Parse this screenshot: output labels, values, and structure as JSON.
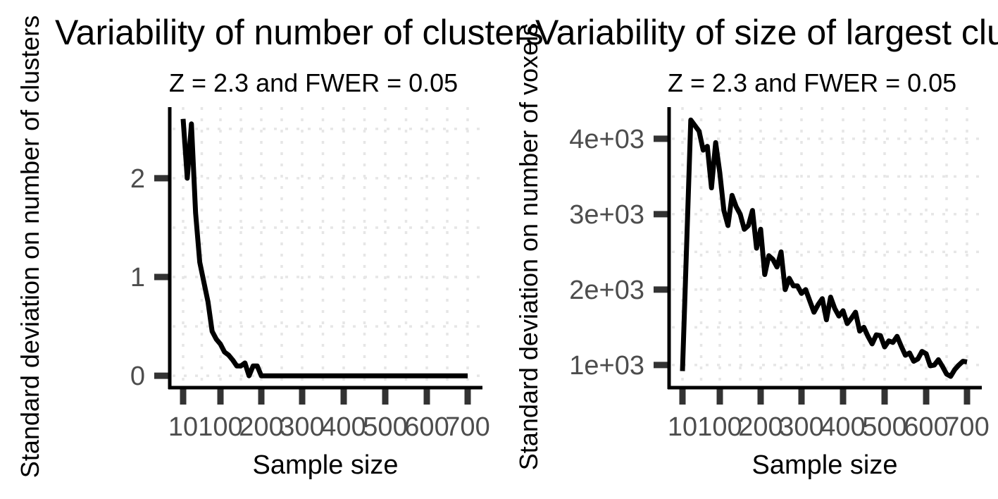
{
  "chart_data": [
    {
      "type": "line",
      "title": "Variability of number of clusters",
      "subtitle": "Z = 2.3 and FWER = 0.05",
      "xlabel": "Sample size",
      "ylabel": "Standard deviation on number of clusters",
      "x_ticks": [
        10,
        100,
        200,
        300,
        400,
        500,
        600,
        700
      ],
      "y_ticks": [
        0,
        1,
        2
      ],
      "y_tick_labels": [
        "0",
        "1",
        "2"
      ],
      "ylim": [
        -0.12,
        2.72
      ],
      "grid": "dotted",
      "series": [
        {
          "x": [
            10,
            20,
            30,
            40,
            50,
            60,
            70,
            80,
            90,
            100,
            110,
            120,
            130,
            140,
            150,
            160,
            170,
            180,
            190,
            200,
            210,
            220,
            700
          ],
          "y": [
            2.6,
            2.0,
            2.55,
            1.65,
            1.15,
            0.95,
            0.75,
            0.45,
            0.37,
            0.32,
            0.24,
            0.21,
            0.16,
            0.1,
            0.1,
            0.13,
            0.0,
            0.1,
            0.1,
            0.0,
            0.0,
            0.0,
            0.0
          ]
        }
      ]
    },
    {
      "type": "line",
      "title": "Variability of size of largest cluster",
      "subtitle": "Z = 2.3 and FWER = 0.05",
      "xlabel": "Sample size",
      "ylabel": "Standard deviation on number of voxels",
      "x_ticks": [
        10,
        100,
        200,
        300,
        400,
        500,
        600,
        700
      ],
      "y_ticks": [
        1000,
        2000,
        3000,
        4000
      ],
      "y_tick_labels": [
        "1e+03",
        "2e+03",
        "3e+03",
        "4e+03"
      ],
      "ylim": [
        700,
        4420
      ],
      "grid": "dotted",
      "series": [
        {
          "x": [
            10,
            30,
            50,
            60,
            70,
            80,
            90,
            100,
            110,
            120,
            130,
            140,
            150,
            160,
            170,
            180,
            190,
            200,
            210,
            220,
            230,
            240,
            250,
            260,
            270,
            280,
            290,
            300,
            310,
            320,
            330,
            340,
            350,
            360,
            370,
            380,
            390,
            400,
            410,
            420,
            430,
            440,
            450,
            460,
            470,
            480,
            490,
            500,
            510,
            520,
            530,
            540,
            550,
            560,
            570,
            580,
            590,
            600,
            610,
            620,
            630,
            640,
            650,
            660,
            670,
            680,
            690,
            700
          ],
          "y": [
            920,
            4250,
            4100,
            3850,
            3900,
            3350,
            3950,
            3550,
            3050,
            2850,
            3250,
            3100,
            3000,
            2800,
            2850,
            3050,
            2550,
            2800,
            2200,
            2450,
            2400,
            2300,
            2500,
            2000,
            2150,
            2050,
            2050,
            1950,
            2000,
            1850,
            1700,
            1800,
            1880,
            1600,
            1900,
            1750,
            1650,
            1720,
            1550,
            1620,
            1700,
            1450,
            1500,
            1380,
            1280,
            1400,
            1390,
            1240,
            1320,
            1300,
            1380,
            1250,
            1130,
            1160,
            1050,
            1080,
            1180,
            1150,
            990,
            1000,
            1070,
            980,
            880,
            850,
            940,
            1000,
            1050,
            1040
          ]
        }
      ]
    }
  ]
}
